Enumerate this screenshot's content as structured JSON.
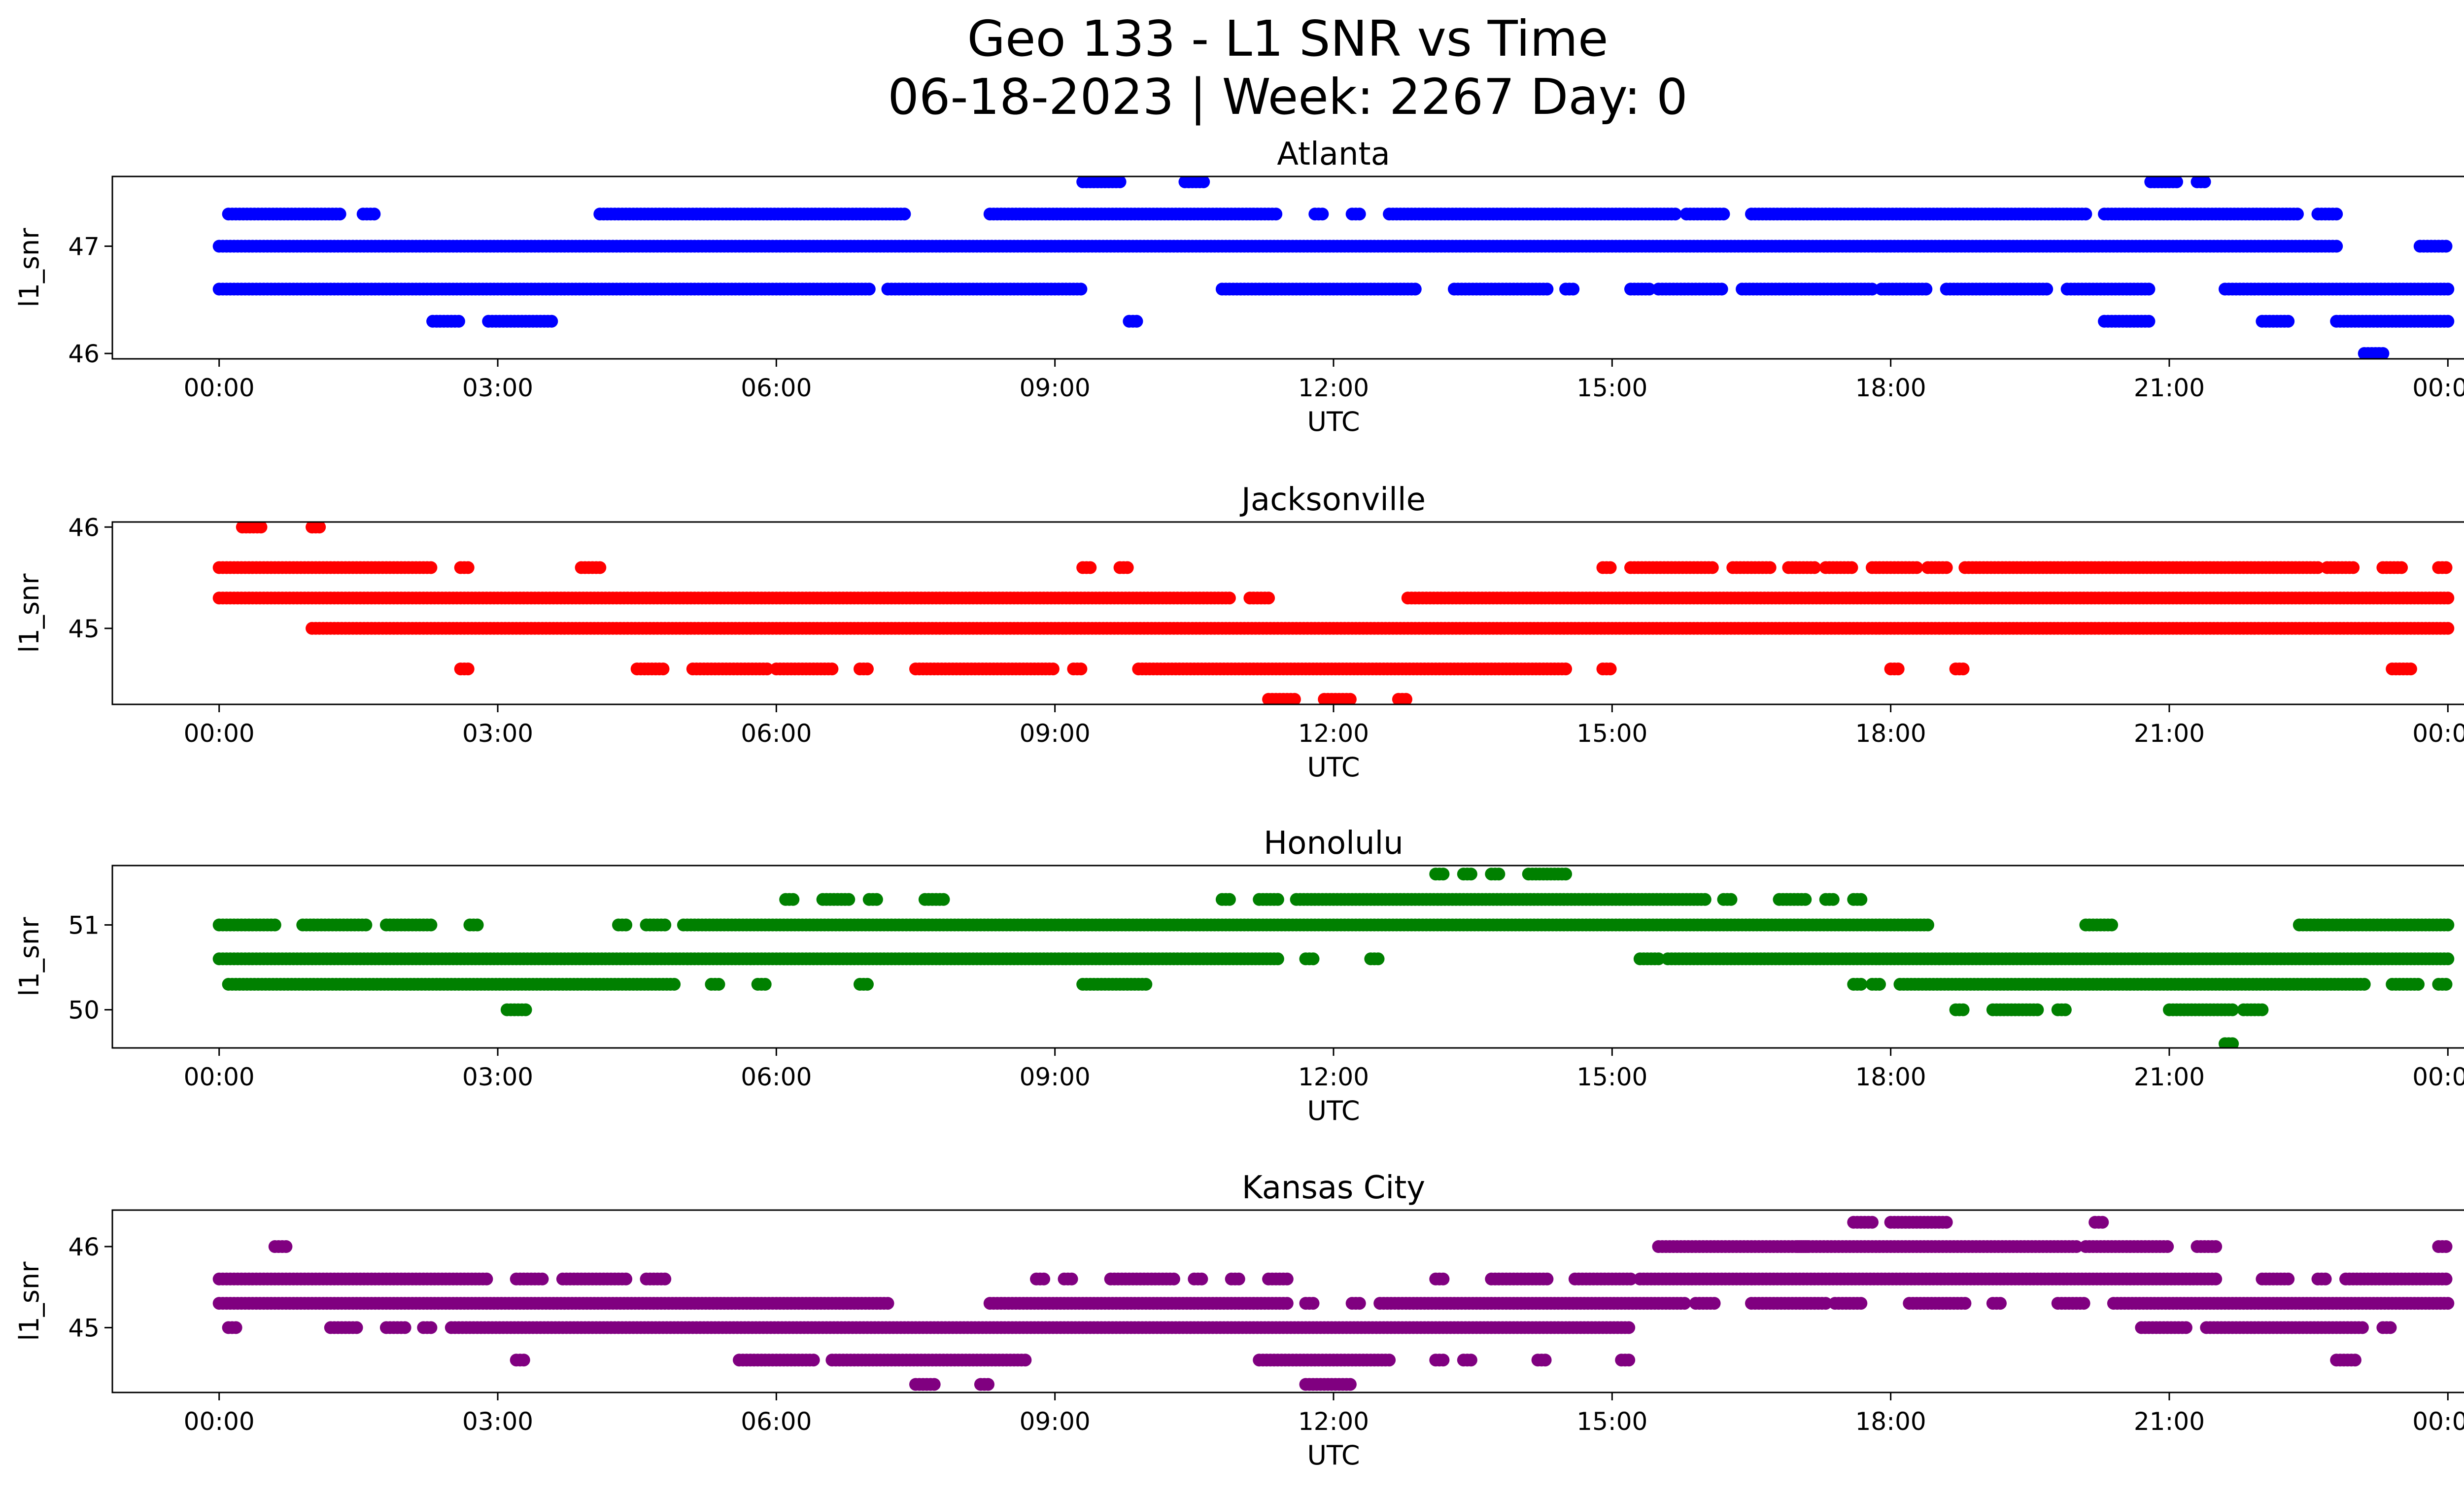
{
  "figure": {
    "title_line1": "Geo 133 - L1 SNR vs Time",
    "title_line2": "06-18-2023 | Week: 2267 Day: 0"
  },
  "chart_data": [
    {
      "type": "scatter",
      "title": "Atlanta",
      "xlabel": "UTC",
      "ylabel": "l1_snr",
      "color": "#0000ff",
      "xlim_hours": [
        -1.15,
        25.15
      ],
      "ylim": [
        45.95,
        47.65
      ],
      "xticks": [
        "00:00",
        "03:00",
        "06:00",
        "09:00",
        "12:00",
        "15:00",
        "18:00",
        "21:00",
        "00:00"
      ],
      "yticks": [
        46,
        47
      ],
      "bands": [
        {
          "y": 47.0,
          "segments": [
            [
              0.0,
              22.8
            ],
            [
              23.7,
              24.0
            ]
          ]
        },
        {
          "y": 47.3,
          "segments": [
            [
              0.1,
              1.3
            ],
            [
              1.55,
              1.7
            ],
            [
              4.1,
              7.4
            ],
            [
              8.3,
              11.4
            ],
            [
              11.8,
              11.9
            ],
            [
              12.2,
              12.3
            ],
            [
              12.6,
              15.7
            ],
            [
              15.8,
              16.2
            ],
            [
              16.5,
              20.1
            ],
            [
              20.3,
              22.4
            ],
            [
              22.6,
              22.8
            ]
          ]
        },
        {
          "y": 46.6,
          "segments": [
            [
              0.0,
              7.0
            ],
            [
              7.2,
              9.3
            ],
            [
              10.8,
              12.9
            ],
            [
              13.3,
              14.3
            ],
            [
              14.5,
              14.6
            ],
            [
              15.2,
              15.4
            ],
            [
              15.5,
              16.2
            ],
            [
              16.4,
              17.8
            ],
            [
              17.9,
              18.4
            ],
            [
              18.6,
              19.7
            ],
            [
              19.9,
              20.8
            ],
            [
              21.6,
              24.0
            ]
          ]
        },
        {
          "y": 46.3,
          "segments": [
            [
              2.3,
              2.6
            ],
            [
              2.9,
              3.6
            ],
            [
              9.8,
              9.9
            ],
            [
              20.3,
              20.8
            ],
            [
              22.0,
              22.3
            ],
            [
              22.8,
              24.0
            ]
          ]
        },
        {
          "y": 47.6,
          "segments": [
            [
              9.3,
              9.7
            ],
            [
              10.4,
              10.6
            ],
            [
              20.8,
              21.1
            ],
            [
              21.3,
              21.4
            ]
          ]
        },
        {
          "y": 46.0,
          "segments": [
            [
              23.1,
              23.3
            ]
          ]
        }
      ]
    },
    {
      "type": "scatter",
      "title": "Jacksonville",
      "xlabel": "UTC",
      "ylabel": "l1_snr",
      "color": "#ff0000",
      "xlim_hours": [
        -1.15,
        25.15
      ],
      "ylim": [
        44.25,
        46.05
      ],
      "xticks": [
        "00:00",
        "03:00",
        "06:00",
        "09:00",
        "12:00",
        "15:00",
        "18:00",
        "21:00",
        "00:00"
      ],
      "yticks": [
        45,
        46
      ],
      "bands": [
        {
          "y": 45.3,
          "segments": [
            [
              0.0,
              10.9
            ],
            [
              11.1,
              11.3
            ],
            [
              12.8,
              24.0
            ]
          ]
        },
        {
          "y": 45.0,
          "segments": [
            [
              1.0,
              24.0
            ]
          ]
        },
        {
          "y": 45.6,
          "segments": [
            [
              0.0,
              2.3
            ],
            [
              2.6,
              2.7
            ],
            [
              3.9,
              4.1
            ],
            [
              9.3,
              9.4
            ],
            [
              9.7,
              9.8
            ],
            [
              14.9,
              15.0
            ],
            [
              15.2,
              16.1
            ],
            [
              16.3,
              16.7
            ],
            [
              16.9,
              17.2
            ],
            [
              17.3,
              17.6
            ],
            [
              17.8,
              18.3
            ],
            [
              18.4,
              18.6
            ],
            [
              18.8,
              22.6
            ],
            [
              22.7,
              23.0
            ],
            [
              23.3,
              23.5
            ],
            [
              23.9,
              24.0
            ]
          ]
        },
        {
          "y": 44.6,
          "segments": [
            [
              2.6,
              2.7
            ],
            [
              4.5,
              4.8
            ],
            [
              5.1,
              5.9
            ],
            [
              6.0,
              6.6
            ],
            [
              6.9,
              7.0
            ],
            [
              7.5,
              9.0
            ],
            [
              9.2,
              9.3
            ],
            [
              9.9,
              14.5
            ],
            [
              14.9,
              15.0
            ],
            [
              18.0,
              18.1
            ],
            [
              18.7,
              18.8
            ],
            [
              23.4,
              23.6
            ]
          ]
        },
        {
          "y": 46.0,
          "segments": [
            [
              0.25,
              0.45
            ],
            [
              1.0,
              1.1
            ]
          ]
        },
        {
          "y": 44.3,
          "segments": [
            [
              11.3,
              11.6
            ],
            [
              11.9,
              12.2
            ],
            [
              12.7,
              12.8
            ]
          ]
        }
      ]
    },
    {
      "type": "scatter",
      "title": "Honolulu",
      "xlabel": "UTC",
      "ylabel": "l1_snr",
      "color": "#008000",
      "xlim_hours": [
        -1.15,
        25.15
      ],
      "ylim": [
        49.55,
        51.7
      ],
      "xticks": [
        "00:00",
        "03:00",
        "06:00",
        "09:00",
        "12:00",
        "15:00",
        "18:00",
        "21:00",
        "00:00"
      ],
      "yticks": [
        50,
        51
      ],
      "bands": [
        {
          "y": 50.6,
          "segments": [
            [
              0.0,
              11.4
            ],
            [
              11.7,
              11.8
            ],
            [
              12.4,
              12.5
            ],
            [
              15.3,
              15.5
            ],
            [
              15.6,
              24.0
            ]
          ]
        },
        {
          "y": 51.0,
          "segments": [
            [
              0.0,
              0.6
            ],
            [
              0.9,
              1.6
            ],
            [
              1.8,
              2.3
            ],
            [
              2.7,
              2.8
            ],
            [
              4.3,
              4.4
            ],
            [
              4.6,
              4.8
            ],
            [
              5.0,
              18.4
            ],
            [
              20.1,
              20.4
            ],
            [
              22.4,
              24.0
            ]
          ]
        },
        {
          "y": 50.3,
          "segments": [
            [
              0.1,
              4.9
            ],
            [
              5.3,
              5.4
            ],
            [
              5.8,
              5.9
            ],
            [
              6.9,
              7.0
            ],
            [
              9.3,
              10.0
            ],
            [
              17.6,
              17.7
            ],
            [
              17.8,
              17.9
            ],
            [
              18.1,
              23.1
            ],
            [
              23.4,
              23.7
            ],
            [
              23.9,
              24.0
            ]
          ]
        },
        {
          "y": 51.3,
          "segments": [
            [
              6.1,
              6.2
            ],
            [
              6.5,
              6.8
            ],
            [
              7.0,
              7.1
            ],
            [
              7.6,
              7.8
            ],
            [
              10.8,
              10.9
            ],
            [
              11.2,
              11.4
            ],
            [
              11.6,
              16.0
            ],
            [
              16.2,
              16.3
            ],
            [
              16.8,
              17.1
            ],
            [
              17.3,
              17.4
            ],
            [
              17.6,
              17.7
            ]
          ]
        },
        {
          "y": 50.0,
          "segments": [
            [
              3.1,
              3.3
            ],
            [
              18.7,
              18.8
            ],
            [
              19.1,
              19.6
            ],
            [
              19.8,
              19.9
            ],
            [
              21.0,
              21.7
            ],
            [
              21.8,
              22.0
            ]
          ]
        },
        {
          "y": 51.6,
          "segments": [
            [
              13.1,
              13.2
            ],
            [
              13.4,
              13.5
            ],
            [
              13.7,
              13.8
            ],
            [
              14.1,
              14.5
            ]
          ]
        },
        {
          "y": 49.6,
          "segments": [
            [
              21.6,
              21.7
            ]
          ]
        }
      ]
    },
    {
      "type": "scatter",
      "title": "Kansas City",
      "xlabel": "UTC",
      "ylabel": "l1_snr",
      "color": "#800080",
      "xlim_hours": [
        -1.15,
        25.15
      ],
      "ylim": [
        44.2,
        46.45
      ],
      "xticks": [
        "00:00",
        "03:00",
        "06:00",
        "09:00",
        "12:00",
        "15:00",
        "18:00",
        "21:00",
        "00:00"
      ],
      "yticks": [
        45,
        46
      ],
      "bands": [
        {
          "y": 45.3,
          "segments": [
            [
              0.0,
              7.2
            ],
            [
              8.3,
              11.5
            ],
            [
              11.7,
              11.8
            ],
            [
              12.2,
              12.3
            ],
            [
              12.5,
              15.8
            ],
            [
              15.9,
              16.1
            ],
            [
              16.5,
              17.3
            ],
            [
              17.4,
              17.7
            ],
            [
              18.2,
              18.8
            ],
            [
              19.1,
              19.2
            ],
            [
              19.8,
              20.1
            ],
            [
              20.4,
              24.0
            ]
          ]
        },
        {
          "y": 45.0,
          "segments": [
            [
              0.1,
              0.2
            ],
            [
              1.2,
              1.5
            ],
            [
              1.8,
              2.0
            ],
            [
              2.2,
              2.3
            ],
            [
              2.5,
              15.2
            ],
            [
              20.7,
              21.2
            ],
            [
              21.4,
              23.1
            ],
            [
              23.3,
              23.4
            ]
          ]
        },
        {
          "y": 45.6,
          "segments": [
            [
              0.0,
              2.9
            ],
            [
              3.2,
              3.5
            ],
            [
              3.7,
              4.4
            ],
            [
              4.6,
              4.8
            ],
            [
              8.8,
              8.9
            ],
            [
              9.1,
              9.2
            ],
            [
              9.6,
              10.3
            ],
            [
              10.5,
              10.6
            ],
            [
              10.9,
              11.0
            ],
            [
              11.3,
              11.5
            ],
            [
              13.1,
              13.2
            ],
            [
              13.7,
              14.3
            ],
            [
              14.6,
              15.2
            ],
            [
              15.3,
              21.5
            ],
            [
              22.0,
              22.3
            ],
            [
              22.6,
              22.7
            ],
            [
              22.9,
              24.0
            ]
          ]
        },
        {
          "y": 46.0,
          "segments": [
            [
              0.6,
              0.75
            ],
            [
              15.5,
              17.1
            ],
            [
              17.0,
              20.0
            ],
            [
              20.1,
              21.0
            ],
            [
              21.3,
              21.5
            ],
            [
              23.9,
              24.0
            ]
          ]
        },
        {
          "y": 44.6,
          "segments": [
            [
              3.2,
              3.3
            ],
            [
              5.6,
              6.4
            ],
            [
              6.6,
              8.7
            ],
            [
              11.2,
              12.6
            ],
            [
              13.1,
              13.2
            ],
            [
              13.4,
              13.5
            ],
            [
              14.2,
              14.3
            ],
            [
              15.1,
              15.2
            ],
            [
              22.8,
              23.0
            ]
          ]
        },
        {
          "y": 44.3,
          "segments": [
            [
              7.5,
              7.7
            ],
            [
              8.2,
              8.3
            ],
            [
              11.7,
              12.2
            ]
          ]
        },
        {
          "y": 46.3,
          "segments": [
            [
              17.6,
              17.8
            ],
            [
              18.0,
              18.6
            ],
            [
              20.2,
              20.3
            ]
          ]
        }
      ]
    }
  ]
}
